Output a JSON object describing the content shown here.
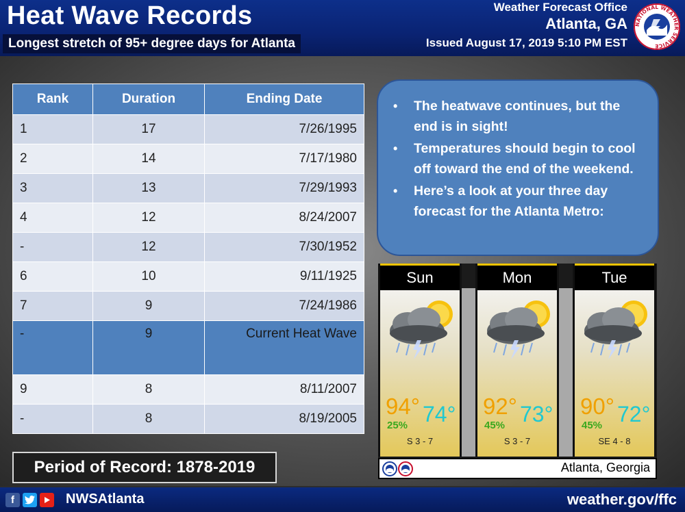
{
  "header": {
    "title": "Heat Wave Records",
    "subtitle": "Longest stretch of 95+ degree days for Atlanta",
    "office_line1": "Weather Forecast Office",
    "office_line2": "Atlanta, GA",
    "issued": "Issued August 17, 2019 5:10 PM EST",
    "logo_text": "NATIONAL WEATHER SERVICE"
  },
  "table": {
    "headers": [
      "Rank",
      "Duration",
      "Ending Date"
    ],
    "rows": [
      {
        "rank": "1",
        "duration": "17",
        "date": "7/26/1995"
      },
      {
        "rank": "2",
        "duration": "14",
        "date": "7/17/1980"
      },
      {
        "rank": "3",
        "duration": "13",
        "date": "7/29/1993"
      },
      {
        "rank": "4",
        "duration": "12",
        "date": "8/24/2007"
      },
      {
        "rank": "-",
        "duration": "12",
        "date": "7/30/1952"
      },
      {
        "rank": "6",
        "duration": "10",
        "date": "9/11/1925"
      },
      {
        "rank": "7",
        "duration": "9",
        "date": "7/24/1986"
      },
      {
        "rank": "-",
        "duration": "9",
        "date": "Current Heat Wave"
      },
      {
        "rank": "9",
        "duration": "8",
        "date": "8/11/2007"
      },
      {
        "rank": "-",
        "duration": "8",
        "date": "8/19/2005"
      }
    ]
  },
  "bullets": [
    "The heatwave continues, but the end is in sight!",
    "Temperatures should begin to cool off toward the end of the weekend.",
    "Here’s a look at your three day forecast for the Atlanta Metro:"
  ],
  "forecast": {
    "days": [
      {
        "name": "Sun",
        "high": "94°",
        "low": "74°",
        "pop": "25%",
        "wind": "S 3 - 7"
      },
      {
        "name": "Mon",
        "high": "92°",
        "low": "73°",
        "pop": "45%",
        "wind": "S 3 - 7"
      },
      {
        "name": "Tue",
        "high": "90°",
        "low": "72°",
        "pop": "45%",
        "wind": "SE 4 - 8"
      }
    ],
    "location": "Atlanta, Georgia",
    "icon": "thunderstorm-partly-sunny-icon"
  },
  "period": "Period of Record: 1878-2019",
  "footer": {
    "handle": "NWSAtlanta",
    "site": "weather.gov/ffc",
    "social_icons": [
      "facebook-icon",
      "twitter-icon",
      "youtube-icon"
    ]
  },
  "colors": {
    "header_blue": "#0a2373",
    "table_header": "#4f81bd",
    "row_odd": "#d0d8e8",
    "row_even": "#e9edf4",
    "high_temp": "#f0a000",
    "low_temp": "#20c8d0",
    "pop": "#3aa81e"
  }
}
